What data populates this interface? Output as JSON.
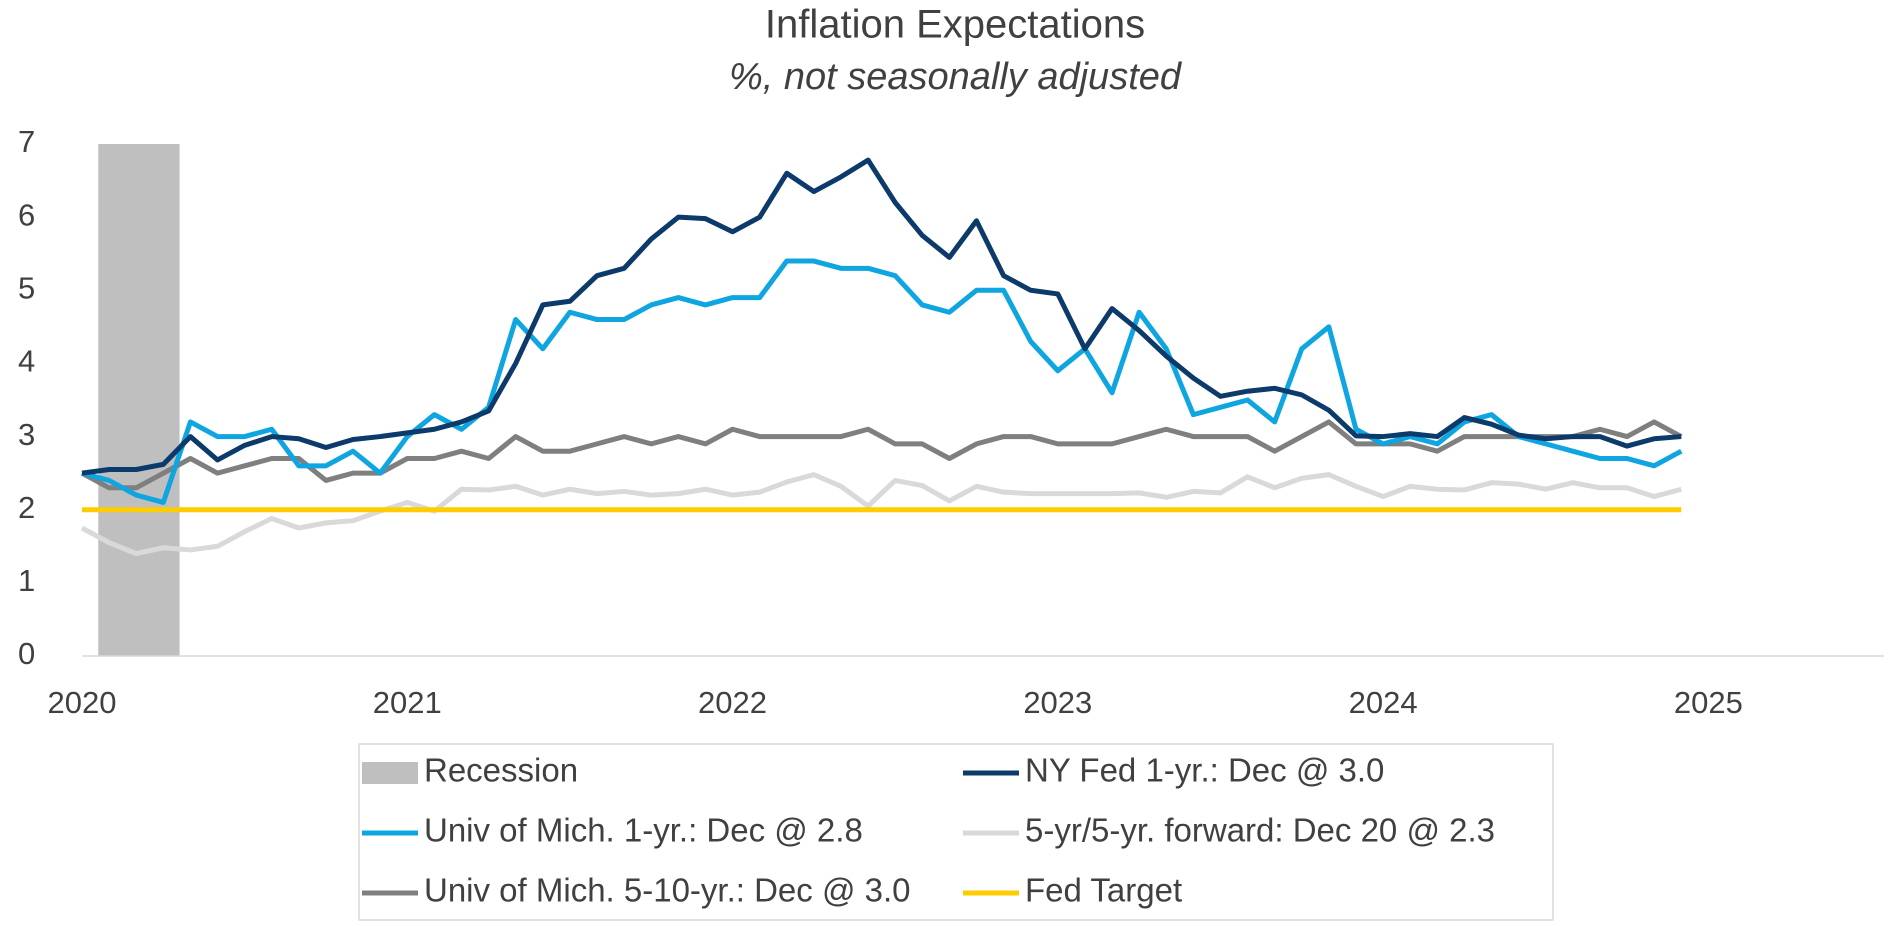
{
  "chart_data": {
    "type": "line",
    "title": "Inflation Expectations",
    "subtitle": "%, not seasonally adjusted",
    "xlim": [
      2020,
      2025.54
    ],
    "xticks": [
      2020,
      2021,
      2022,
      2023,
      2024,
      2025
    ],
    "ylim": [
      0,
      7
    ],
    "yticks": [
      0,
      1,
      2,
      3,
      4,
      5,
      6,
      7
    ],
    "grid": false,
    "recession": {
      "name": "Recession",
      "color": "#bfbfbf",
      "start": 2020.05,
      "end": 2020.3
    },
    "x": [
      2020,
      2020.0833,
      2020.1667,
      2020.25,
      2020.3333,
      2020.4167,
      2020.5,
      2020.5833,
      2020.6667,
      2020.75,
      2020.8333,
      2020.9167,
      2021,
      2021.0833,
      2021.1667,
      2021.25,
      2021.3333,
      2021.4167,
      2021.5,
      2021.5833,
      2021.6667,
      2021.75,
      2021.8333,
      2021.9167,
      2022,
      2022.0833,
      2022.1667,
      2022.25,
      2022.3333,
      2022.4167,
      2022.5,
      2022.5833,
      2022.6667,
      2022.75,
      2022.8333,
      2022.9167,
      2023,
      2023.0833,
      2023.1667,
      2023.25,
      2023.3333,
      2023.4167,
      2023.5,
      2023.5833,
      2023.6667,
      2023.75,
      2023.8333,
      2023.9167,
      2024,
      2024.0833,
      2024.1667,
      2024.25,
      2024.3333,
      2024.4167,
      2024.5,
      2024.5833,
      2024.6667,
      2024.75,
      2024.8333,
      2024.9167
    ],
    "series": [
      {
        "name": "NY Fed 1-yr.: Dec @ 3.0",
        "color": "#0b3a6b",
        "values": [
          2.5,
          2.55,
          2.55,
          2.62,
          3.0,
          2.68,
          2.88,
          3.0,
          2.97,
          2.85,
          2.96,
          3.0,
          3.05,
          3.1,
          3.2,
          3.35,
          4.0,
          4.8,
          4.85,
          5.2,
          5.3,
          5.7,
          6.0,
          5.98,
          5.8,
          6.0,
          6.6,
          6.35,
          6.55,
          6.78,
          6.2,
          5.75,
          5.45,
          5.95,
          5.2,
          5.0,
          4.95,
          4.2,
          4.75,
          4.45,
          4.1,
          3.8,
          3.55,
          3.62,
          3.66,
          3.57,
          3.36,
          3.01,
          3.0,
          3.04,
          3.0,
          3.26,
          3.17,
          3.02,
          2.97,
          3.0,
          3.0,
          2.87,
          2.97,
          3.0
        ]
      },
      {
        "name": "Univ of Mich. 1-yr.: Dec @ 2.8",
        "color": "#0ea5e0",
        "values": [
          2.5,
          2.4,
          2.2,
          2.1,
          3.2,
          3.0,
          3.0,
          3.1,
          2.6,
          2.6,
          2.8,
          2.5,
          3.0,
          3.3,
          3.1,
          3.4,
          4.6,
          4.2,
          4.7,
          4.6,
          4.6,
          4.8,
          4.9,
          4.8,
          4.9,
          4.9,
          5.4,
          5.4,
          5.3,
          5.3,
          5.2,
          4.8,
          4.7,
          5.0,
          5.0,
          4.3,
          3.9,
          4.2,
          3.6,
          4.7,
          4.2,
          3.3,
          3.4,
          3.5,
          3.2,
          4.2,
          4.5,
          3.1,
          2.9,
          3.0,
          2.9,
          3.2,
          3.3,
          3.0,
          2.9,
          2.8,
          2.7,
          2.7,
          2.6,
          2.8
        ]
      },
      {
        "name": "5-yr/5-yr. forward: Dec 20 @ 2.3",
        "color": "#d9d9d9",
        "values": [
          1.75,
          1.55,
          1.4,
          1.48,
          1.45,
          1.5,
          1.7,
          1.88,
          1.75,
          1.82,
          1.85,
          1.98,
          2.1,
          1.98,
          2.28,
          2.27,
          2.32,
          2.2,
          2.28,
          2.22,
          2.25,
          2.2,
          2.22,
          2.28,
          2.2,
          2.24,
          2.38,
          2.48,
          2.32,
          2.05,
          2.4,
          2.33,
          2.12,
          2.32,
          2.24,
          2.22,
          2.22,
          2.22,
          2.22,
          2.23,
          2.17,
          2.25,
          2.23,
          2.45,
          2.3,
          2.43,
          2.48,
          2.32,
          2.18,
          2.32,
          2.28,
          2.27,
          2.37,
          2.35,
          2.28,
          2.37,
          2.3,
          2.3,
          2.18,
          2.28
        ]
      },
      {
        "name": "Univ of Mich. 5-10-yr.: Dec @ 3.0",
        "color": "#7f7f7f",
        "values": [
          2.5,
          2.3,
          2.3,
          2.5,
          2.7,
          2.5,
          2.6,
          2.7,
          2.7,
          2.4,
          2.5,
          2.5,
          2.7,
          2.7,
          2.8,
          2.7,
          3.0,
          2.8,
          2.8,
          2.9,
          3.0,
          2.9,
          3.0,
          2.9,
          3.1,
          3.0,
          3.0,
          3.0,
          3.0,
          3.1,
          2.9,
          2.9,
          2.7,
          2.9,
          3.0,
          3.0,
          2.9,
          2.9,
          2.9,
          3.0,
          3.1,
          3.0,
          3.0,
          3.0,
          2.8,
          3.0,
          3.2,
          2.9,
          2.9,
          2.9,
          2.8,
          3.0,
          3.0,
          3.0,
          3.0,
          3.0,
          3.1,
          3.0,
          3.2,
          3.0
        ]
      },
      {
        "name": "Fed Target",
        "color": "#ffcc00",
        "values": [
          2,
          2,
          2,
          2,
          2,
          2,
          2,
          2,
          2,
          2,
          2,
          2,
          2,
          2,
          2,
          2,
          2,
          2,
          2,
          2,
          2,
          2,
          2,
          2,
          2,
          2,
          2,
          2,
          2,
          2,
          2,
          2,
          2,
          2,
          2,
          2,
          2,
          2,
          2,
          2,
          2,
          2,
          2,
          2,
          2,
          2,
          2,
          2,
          2,
          2,
          2,
          2,
          2,
          2,
          2,
          2,
          2,
          2,
          2,
          2
        ]
      }
    ]
  }
}
